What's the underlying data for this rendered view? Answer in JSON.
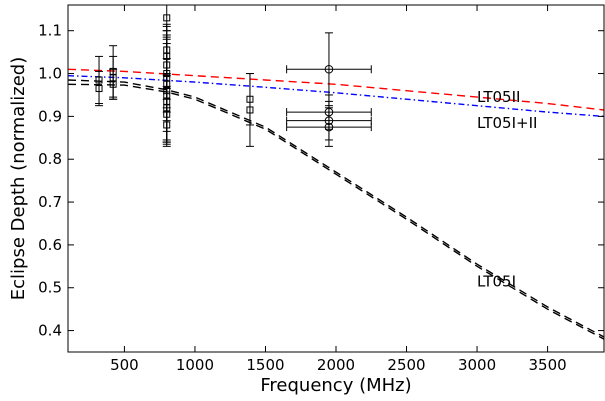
{
  "chart_data": {
    "type": "scatter",
    "title": "",
    "xlabel": "Frequency (MHz)",
    "ylabel": "Eclipse Depth (normalized)",
    "xlim": [
      100,
      3900
    ],
    "ylim": [
      0.35,
      1.16
    ],
    "xticks": [
      500,
      1000,
      1500,
      2000,
      2500,
      3000,
      3500
    ],
    "yticks": [
      0.4,
      0.5,
      0.6,
      0.7,
      0.8,
      0.9,
      1.0,
      1.1
    ],
    "grid": false,
    "legend": "none",
    "annotations": [
      {
        "text": "LT05II",
        "x": 3000,
        "y": 0.945
      },
      {
        "text": "LT05I+II",
        "x": 3000,
        "y": 0.885
      },
      {
        "text": "LT05I",
        "x": 3000,
        "y": 0.515
      }
    ],
    "points_square": [
      {
        "x": 320,
        "y": 0.985,
        "yerr": 0.055
      },
      {
        "x": 320,
        "y": 0.965,
        "yerr": 0.04
      },
      {
        "x": 420,
        "y": 1.005,
        "yerr": 0.06
      },
      {
        "x": 420,
        "y": 0.99,
        "yerr": 0.05
      },
      {
        "x": 420,
        "y": 0.975,
        "yerr": 0.035
      },
      {
        "x": 800,
        "y": 1.13,
        "yerr": 0.03
      },
      {
        "x": 800,
        "y": 1.055,
        "yerr": 0.06
      },
      {
        "x": 800,
        "y": 1.04,
        "yerr": 0.07
      },
      {
        "x": 800,
        "y": 1.02,
        "yerr": 0.08
      },
      {
        "x": 800,
        "y": 1.0,
        "yerr": 0.09
      },
      {
        "x": 800,
        "y": 0.99,
        "yerr": 0.1
      },
      {
        "x": 800,
        "y": 0.975,
        "yerr": 0.11
      },
      {
        "x": 800,
        "y": 0.96,
        "yerr": 0.12
      },
      {
        "x": 800,
        "y": 0.95,
        "yerr": 0.12
      },
      {
        "x": 800,
        "y": 0.935,
        "yerr": 0.1
      },
      {
        "x": 800,
        "y": 0.92,
        "yerr": 0.08
      },
      {
        "x": 800,
        "y": 0.905,
        "yerr": 0.06
      },
      {
        "x": 800,
        "y": 0.88,
        "yerr": 0.04
      },
      {
        "x": 1390,
        "y": 0.94,
        "yerr": 0.06
      },
      {
        "x": 1390,
        "y": 0.915,
        "yerr": 0.085
      }
    ],
    "points_circle": [
      {
        "x": 1950,
        "y": 1.01,
        "xerr": 300,
        "yerr": 0.085
      },
      {
        "x": 1950,
        "y": 0.91,
        "xerr": 300,
        "yerr": 0.04
      },
      {
        "x": 1950,
        "y": 0.89,
        "xerr": 300,
        "yerr": 0.045
      },
      {
        "x": 1950,
        "y": 0.875,
        "xerr": 300,
        "yerr": 0.045
      }
    ],
    "series": [
      {
        "name": "LT05II",
        "style": "dashed",
        "color": "#ff0000",
        "x": [
          100,
          500,
          1000,
          1500,
          2000,
          2500,
          3000,
          3500,
          3900
        ],
        "y": [
          1.01,
          1.005,
          0.995,
          0.985,
          0.975,
          0.96,
          0.945,
          0.93,
          0.915
        ]
      },
      {
        "name": "LT05I+II",
        "style": "dash-dot",
        "color": "#0000ff",
        "x": [
          100,
          500,
          1000,
          1500,
          2000,
          2500,
          3000,
          3500,
          3900
        ],
        "y": [
          0.995,
          0.99,
          0.98,
          0.968,
          0.955,
          0.94,
          0.925,
          0.91,
          0.9
        ]
      },
      {
        "name": "LT05I",
        "style": "dashed",
        "color": "#000000",
        "x": [
          100,
          500,
          800,
          1000,
          1500,
          2000,
          2500,
          3000,
          3500,
          3900
        ],
        "y": [
          0.985,
          0.98,
          0.962,
          0.945,
          0.875,
          0.77,
          0.665,
          0.555,
          0.455,
          0.385
        ]
      },
      {
        "name": "LT05I",
        "style": "dashed",
        "color": "#000000",
        "x": [
          100,
          500,
          800,
          1000,
          1500,
          2000,
          2500,
          3000,
          3500,
          3900
        ],
        "y": [
          0.975,
          0.973,
          0.957,
          0.94,
          0.87,
          0.765,
          0.66,
          0.55,
          0.45,
          0.38
        ]
      }
    ]
  }
}
